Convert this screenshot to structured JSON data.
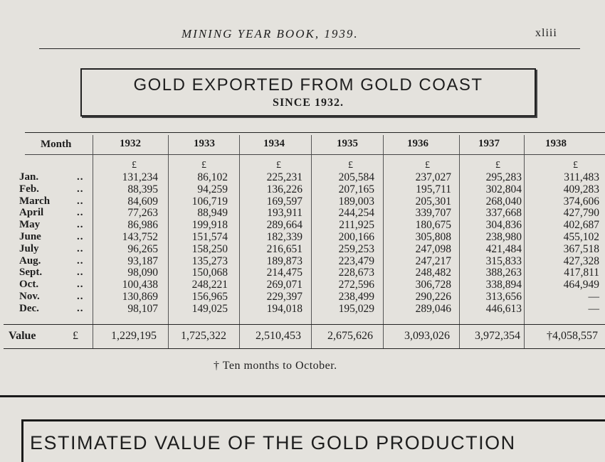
{
  "header": {
    "running_title": "MINING YEAR BOOK, 1939.",
    "page_number": "xliii"
  },
  "table_title": {
    "main": "GOLD EXPORTED FROM GOLD COAST",
    "sub": "SINCE 1932."
  },
  "columns": {
    "month_label": "Month",
    "years": [
      "1932",
      "1933",
      "1934",
      "1935",
      "1936",
      "1937",
      "1938"
    ],
    "currency_symbol": "£"
  },
  "months": [
    "Jan.",
    "Feb.",
    "March",
    "April",
    "May",
    "June",
    "July",
    "Aug.",
    "Sept.",
    "Oct.",
    "Nov.",
    "Dec."
  ],
  "month_dots": [
    "..",
    "..",
    "..",
    "..",
    "..",
    "..",
    "..",
    "..",
    "..",
    "..",
    "..",
    "., .."
  ],
  "data": {
    "1932": [
      "131,234",
      "88,395",
      "84,609",
      "77,263",
      "86,986",
      "143,752",
      "96,265",
      "93,187",
      "98,090",
      "100,438",
      "130,869",
      "98,107"
    ],
    "1933": [
      "86,102",
      "94,259",
      "106,719",
      "88,949",
      "199,918",
      "151,574",
      "158,250",
      "135,273",
      "150,068",
      "248,221",
      "156,965",
      "149,025"
    ],
    "1934": [
      "225,231",
      "136,226",
      "169,597",
      "193,911",
      "289,664",
      "182,339",
      "216,651",
      "189,873",
      "214,475",
      "269,071",
      "229,397",
      "194,018"
    ],
    "1935": [
      "205,584",
      "207,165",
      "189,003",
      "244,254",
      "211,925",
      "200,166",
      "259,253",
      "223,479",
      "228,673",
      "272,596",
      "238,499",
      "195,029"
    ],
    "1936": [
      "237,027",
      "195,711",
      "205,301",
      "339,707",
      "180,675",
      "305,808",
      "247,098",
      "247,217",
      "248,482",
      "306,728",
      "290,226",
      "289,046"
    ],
    "1937": [
      "295,283",
      "302,804",
      "268,040",
      "337,668",
      "304,836",
      "238,980",
      "421,484",
      "315,833",
      "388,263",
      "338,894",
      "313,656",
      "446,613"
    ],
    "1938": [
      "311,483",
      "409,283",
      "374,606",
      "427,790",
      "402,687",
      "455,102",
      "367,518",
      "427,328",
      "417,811",
      "464,949",
      "—",
      "—"
    ]
  },
  "value_row": {
    "label": "Value",
    "currency_symbol": "£",
    "totals": [
      "1,229,195",
      "1,725,322",
      "2,510,453",
      "2,675,626",
      "3,093,026",
      "3,972,354",
      "†4,058,557"
    ]
  },
  "footnote": "† Ten months to October.",
  "next_section_title": "ESTIMATED VALUE OF THE GOLD PRODUCTION"
}
